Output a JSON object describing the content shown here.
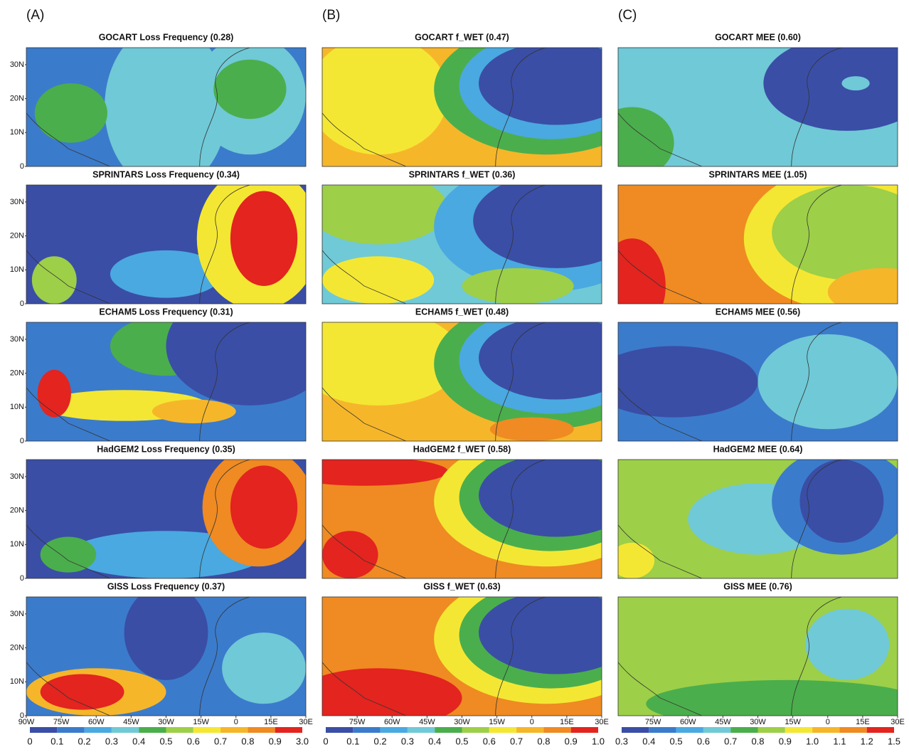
{
  "columns": [
    {
      "label": "(A)",
      "xlim": [
        -90,
        30
      ],
      "ylim": [
        0,
        35
      ],
      "yticks": [
        {
          "value": 30,
          "label": "30N"
        },
        {
          "value": 20,
          "label": "20N"
        },
        {
          "value": 10,
          "label": "10N"
        },
        0
      ],
      "xticks": [
        {
          "value": -90,
          "label": "90W"
        },
        {
          "value": -75,
          "label": "75W"
        },
        {
          "value": -60,
          "label": "60W"
        },
        {
          "value": -45,
          "label": "45W"
        },
        {
          "value": -30,
          "label": "30W"
        },
        {
          "value": -15,
          "label": "15W"
        },
        0,
        {
          "value": 15,
          "label": "15E"
        },
        {
          "value": 30,
          "label": "30E"
        }
      ],
      "titles": [
        "GOCART Loss Frequency  (0.28)",
        "SPRINTARS Loss Frequency  (0.34)",
        "ECHAM5 Loss Frequency  (0.31)",
        "HadGEM2 Loss Frequency  (0.35)",
        "GISS Loss Frequency  (0.37)"
      ],
      "colorbar_labels": [
        "0",
        "0.1",
        "0.2",
        "0.3",
        "0.4",
        "0.5",
        "0.6",
        "0.7",
        "0.8",
        "0.9",
        "3.0"
      ]
    },
    {
      "label": "(B)",
      "xlim": [
        -90,
        30
      ],
      "xticks": [
        {
          "value": -75,
          "label": "75W"
        },
        {
          "value": -60,
          "label": "60W"
        },
        {
          "value": -45,
          "label": "45W"
        },
        {
          "value": -30,
          "label": "30W"
        },
        {
          "value": -15,
          "label": "15W"
        },
        0,
        {
          "value": 15,
          "label": "15E"
        },
        {
          "value": 30,
          "label": "30E"
        }
      ],
      "titles": [
        "GOCART f_WET  (0.47)",
        "SPRINTARS f_WET  (0.36)",
        "ECHAM5 f_WET  (0.48)",
        "HadGEM2 f_WET  (0.58)",
        "GISS f_WET  (0.63)"
      ],
      "colorbar_labels": [
        "0",
        "0.1",
        "0.2",
        "0.3",
        "0.4",
        "0.5",
        "0.6",
        "0.7",
        "0.8",
        "0.9",
        "1.0"
      ]
    },
    {
      "label": "(C)",
      "xlim": [
        -90,
        30
      ],
      "xticks": [
        {
          "value": -75,
          "label": "75W"
        },
        {
          "value": -60,
          "label": "60W"
        },
        {
          "value": -45,
          "label": "45W"
        },
        {
          "value": -30,
          "label": "30W"
        },
        {
          "value": -15,
          "label": "15W"
        },
        0,
        {
          "value": 15,
          "label": "15E"
        },
        {
          "value": 30,
          "label": "30E"
        }
      ],
      "titles": [
        "GOCART MEE  (0.60)",
        "SPRINTARS MEE  (1.05)",
        "ECHAM5 MEE  (0.56)",
        "HadGEM2 MEE  (0.64)",
        "GISS MEE  (0.76)"
      ],
      "colorbar_labels": [
        "0.3",
        "0.4",
        "0.5",
        "0.6",
        "0.7",
        "0.8",
        "0.9",
        "1.0",
        "1.1",
        "1.2",
        "1.5"
      ]
    }
  ]
}
